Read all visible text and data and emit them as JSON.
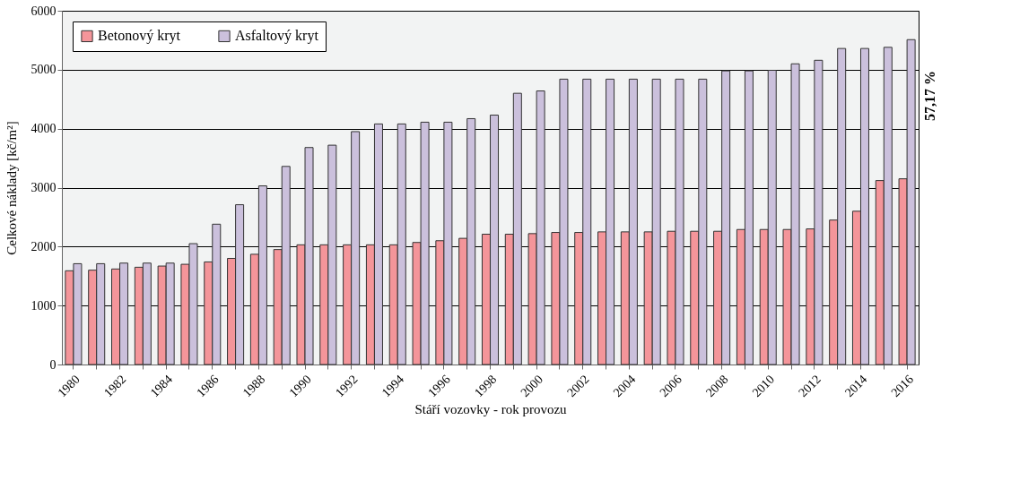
{
  "chart_data": {
    "type": "bar",
    "xlabel": "Stáří vozovky - rok provozu",
    "ylabel": "Celkové náklady [kč/m²]",
    "categories": [
      "1980",
      null,
      "1982",
      null,
      "1984",
      null,
      "1986",
      null,
      "1988",
      null,
      "1990",
      null,
      "1992",
      null,
      "1994",
      null,
      "1996",
      null,
      "1998",
      null,
      "2000",
      null,
      "2002",
      null,
      "2004",
      null,
      "2006",
      null,
      "2008",
      null,
      "2010",
      null,
      "2012",
      null,
      "2014",
      null,
      "2016"
    ],
    "series": [
      {
        "name": "Betonový kryt",
        "color": "#f4959a",
        "values": [
          1590,
          1600,
          1620,
          1650,
          1670,
          1700,
          1740,
          1800,
          1870,
          1950,
          2030,
          2030,
          2030,
          2030,
          2030,
          2070,
          2100,
          2140,
          2210,
          2210,
          2220,
          2240,
          2240,
          2250,
          2250,
          2250,
          2260,
          2260,
          2260,
          2290,
          2290,
          2290,
          2300,
          2450,
          2600,
          3120,
          3150
        ]
      },
      {
        "name": "Asfaltový kryt",
        "color": "#cbc0dc",
        "values": [
          1710,
          1710,
          1720,
          1720,
          1720,
          2050,
          2380,
          2710,
          3030,
          3360,
          3680,
          3720,
          3950,
          4080,
          4080,
          4110,
          4110,
          4170,
          4230,
          4600,
          4640,
          4840,
          4840,
          4840,
          4840,
          4840,
          4840,
          4840,
          4980,
          4980,
          4990,
          5100,
          5160,
          5360,
          5360,
          5380,
          5510
        ]
      }
    ],
    "ylim": [
      0,
      6000
    ],
    "yticks": [
      0,
      1000,
      2000,
      3000,
      4000,
      5000,
      6000
    ],
    "grid": "y",
    "legend": "top left",
    "annotations": [
      "57,17 %"
    ]
  }
}
